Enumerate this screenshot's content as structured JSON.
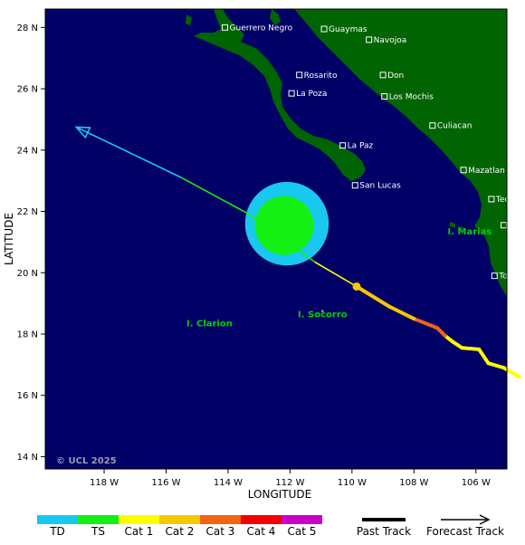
{
  "map": {
    "xlabel": "LONGITUDE",
    "ylabel": "LATITUDE",
    "lon_range": [
      -119.9,
      -105.0
    ],
    "lat_range": [
      13.6,
      28.6
    ],
    "x_ticks": [
      {
        "lon": -118,
        "label": "118 W"
      },
      {
        "lon": -116,
        "label": "116 W"
      },
      {
        "lon": -114,
        "label": "114 W"
      },
      {
        "lon": -112,
        "label": "112 W"
      },
      {
        "lon": -110,
        "label": "110 W"
      },
      {
        "lon": -108,
        "label": "108 W"
      },
      {
        "lon": -106,
        "label": "106 W"
      }
    ],
    "y_ticks": [
      {
        "lat": 28,
        "label": "28 N"
      },
      {
        "lat": 26,
        "label": "26 N"
      },
      {
        "lat": 24,
        "label": "24 N"
      },
      {
        "lat": 22,
        "label": "22 N"
      },
      {
        "lat": 20,
        "label": "20 N"
      },
      {
        "lat": 18,
        "label": "18 N"
      },
      {
        "lat": 16,
        "label": "16 N"
      },
      {
        "lat": 14,
        "label": "14 N"
      }
    ],
    "colors": {
      "ocean": "#000066",
      "land": "#006400",
      "city_text": "#ffffff",
      "island_text": "#00d000"
    },
    "cities": [
      {
        "name": "Guerrero Negro",
        "lon": -114.1,
        "lat": 28.0
      },
      {
        "name": "Guaymas",
        "lon": -110.9,
        "lat": 27.95
      },
      {
        "name": "Navojoa",
        "lon": -109.45,
        "lat": 27.6
      },
      {
        "name": "Rosarito",
        "lon": -111.7,
        "lat": 26.45
      },
      {
        "name": "Don",
        "lon": -109.0,
        "lat": 26.45
      },
      {
        "name": "La Poza",
        "lon": -111.95,
        "lat": 25.85
      },
      {
        "name": "Los Mochis",
        "lon": -108.95,
        "lat": 25.75
      },
      {
        "name": "Culiacan",
        "lon": -107.4,
        "lat": 24.8
      },
      {
        "name": "La Paz",
        "lon": -110.3,
        "lat": 24.15
      },
      {
        "name": "Mazatlan",
        "lon": -106.4,
        "lat": 23.35
      },
      {
        "name": "San Lucas",
        "lon": -109.9,
        "lat": 22.85
      },
      {
        "name": "Tecuala",
        "lon": -105.5,
        "lat": 22.4
      },
      {
        "name": "Tepic",
        "lon": -105.1,
        "lat": 21.55
      },
      {
        "name": "Tomatlan",
        "lon": -105.4,
        "lat": 19.9
      }
    ],
    "islands": [
      {
        "name": "I. Marias",
        "lon": -106.2,
        "lat": 21.25
      },
      {
        "name": "I. Clarion",
        "lon": -114.6,
        "lat": 18.25
      },
      {
        "name": "I. Socorro",
        "lon": -110.95,
        "lat": 18.55
      }
    ],
    "copyright": "© UCL 2025"
  },
  "storm": {
    "center": {
      "lon": -112.1,
      "lat": 21.6
    },
    "ts_wind_radius_deg": 0.95,
    "td_wind_radius_deg": 1.35,
    "current_position": {
      "lon": -109.85,
      "lat": 19.55
    },
    "past_track": [
      {
        "lon": -104.6,
        "lat": 16.6,
        "category": "Cat 1"
      },
      {
        "lon": -105.1,
        "lat": 16.9,
        "category": "Cat 1"
      },
      {
        "lon": -105.6,
        "lat": 17.05,
        "category": "Cat 1"
      },
      {
        "lon": -105.9,
        "lat": 17.5,
        "category": "Cat 1"
      },
      {
        "lon": -106.45,
        "lat": 17.55,
        "category": "Cat 1"
      },
      {
        "lon": -106.75,
        "lat": 17.75,
        "category": "Cat 1"
      },
      {
        "lon": -107.0,
        "lat": 17.95,
        "category": "Cat 1"
      },
      {
        "lon": -107.25,
        "lat": 18.2,
        "category": "Cat 3"
      },
      {
        "lon": -108.0,
        "lat": 18.5,
        "category": "Cat 3"
      },
      {
        "lon": -108.8,
        "lat": 18.9,
        "category": "Cat 2"
      },
      {
        "lon": -109.85,
        "lat": 19.55,
        "category": "Cat 2"
      }
    ],
    "forecast_track": [
      {
        "lon": -109.85,
        "lat": 19.55,
        "category": "Cat 1"
      },
      {
        "lon": -111.2,
        "lat": 20.35,
        "category": "TS"
      },
      {
        "lon": -113.4,
        "lat": 21.95,
        "category": "TS"
      },
      {
        "lon": -115.5,
        "lat": 23.1,
        "category": "TD"
      },
      {
        "lon": -118.9,
        "lat": 24.75,
        "category": "TD"
      }
    ]
  },
  "legend": {
    "categories": [
      {
        "label": "TD",
        "color": "#19c8f0"
      },
      {
        "label": "TS",
        "color": "#14f014"
      },
      {
        "label": "Cat 1",
        "color": "#ffff00"
      },
      {
        "label": "Cat 2",
        "color": "#f5c800"
      },
      {
        "label": "Cat 3",
        "color": "#f06414"
      },
      {
        "label": "Cat 4",
        "color": "#f00000"
      },
      {
        "label": "Cat 5",
        "color": "#c800c8"
      }
    ],
    "past_track_label": "Past Track",
    "forecast_track_label": "Forecast Track"
  }
}
